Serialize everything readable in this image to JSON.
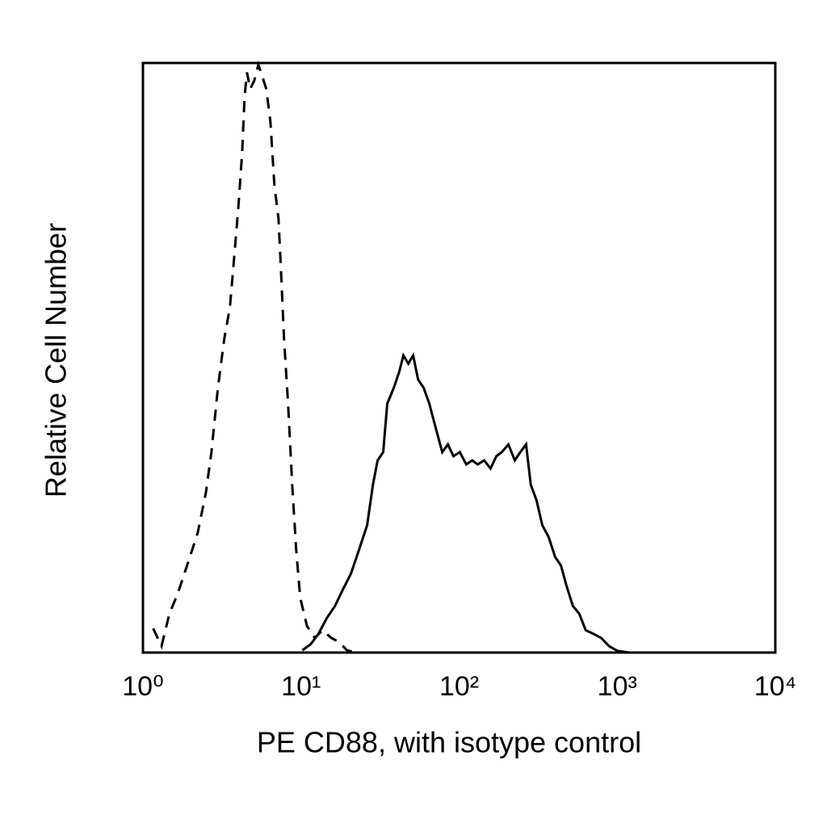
{
  "chart_data": {
    "type": "line",
    "xlabel": "PE CD88, with isotype control",
    "ylabel": "Relative Cell Number",
    "xlog": true,
    "xlim": [
      1,
      10000
    ],
    "xticks": [
      {
        "value": 1,
        "label": "10⁰"
      },
      {
        "value": 10,
        "label": "10¹"
      },
      {
        "value": 100,
        "label": "10²"
      },
      {
        "value": 1000,
        "label": "10³"
      },
      {
        "value": 10000,
        "label": "10⁴"
      }
    ],
    "ylim": [
      0,
      100
    ],
    "series": [
      {
        "color": "#000000",
        "line_style": "solid",
        "x": [
          10.2,
          11.5,
          12.9,
          14.6,
          16.4,
          18.4,
          20.7,
          23.3,
          26.2,
          28.5,
          30.5,
          33.1,
          35.1,
          38.6,
          41.9,
          44.4,
          47.7,
          51.2,
          55.0,
          59.7,
          64.8,
          71.1,
          78.2,
          84.9,
          92.1,
          101,
          111,
          121,
          131,
          144,
          158,
          172,
          186,
          205,
          225,
          244,
          265,
          284,
          309,
          336,
          368,
          405,
          440,
          477,
          524,
          575,
          632,
          703,
          791,
          889,
          1000,
          1194
        ],
        "values": [
          0.4,
          1.4,
          3.2,
          5.9,
          7.9,
          10.7,
          13.4,
          17.5,
          21.6,
          28.5,
          32.6,
          34.0,
          42.2,
          44.9,
          47.7,
          50.4,
          49.0,
          50.4,
          46.3,
          44.9,
          42.2,
          38.1,
          34.0,
          35.3,
          33.3,
          34.0,
          31.9,
          32.6,
          31.9,
          32.6,
          31.2,
          33.3,
          34.0,
          35.3,
          32.6,
          34.0,
          35.3,
          28.5,
          25.8,
          21.6,
          19.6,
          16.2,
          14.8,
          11.4,
          7.9,
          6.6,
          3.8,
          3.2,
          2.5,
          1.1,
          0.3,
          0
        ]
      },
      {
        "color": "#000000",
        "line_style": "dashed",
        "x": [
          1.16,
          1.31,
          1.47,
          1.66,
          1.98,
          2.22,
          2.5,
          2.71,
          2.98,
          3.27,
          3.55,
          3.77,
          4.0,
          4.24,
          4.39,
          4.55,
          4.77,
          5.06,
          5.37,
          5.69,
          6.03,
          6.4,
          6.79,
          7.2,
          7.45,
          7.81,
          8.28,
          8.79,
          9.31,
          9.88,
          10.9,
          12.2,
          13.7,
          15.5,
          17.4,
          19.5,
          22.0
        ],
        "values": [
          4.1,
          1.1,
          6.6,
          10.0,
          16.2,
          20.3,
          27.1,
          34.0,
          44.9,
          53.2,
          58.6,
          66.8,
          75.1,
          84.7,
          94.2,
          98.4,
          95.6,
          97.0,
          99.7,
          97.7,
          95.6,
          90.1,
          79.2,
          73.7,
          65.5,
          53.2,
          42.2,
          28.5,
          17.5,
          9.3,
          4.5,
          2.5,
          3.8,
          2.5,
          1.8,
          0.4,
          0
        ]
      }
    ]
  }
}
